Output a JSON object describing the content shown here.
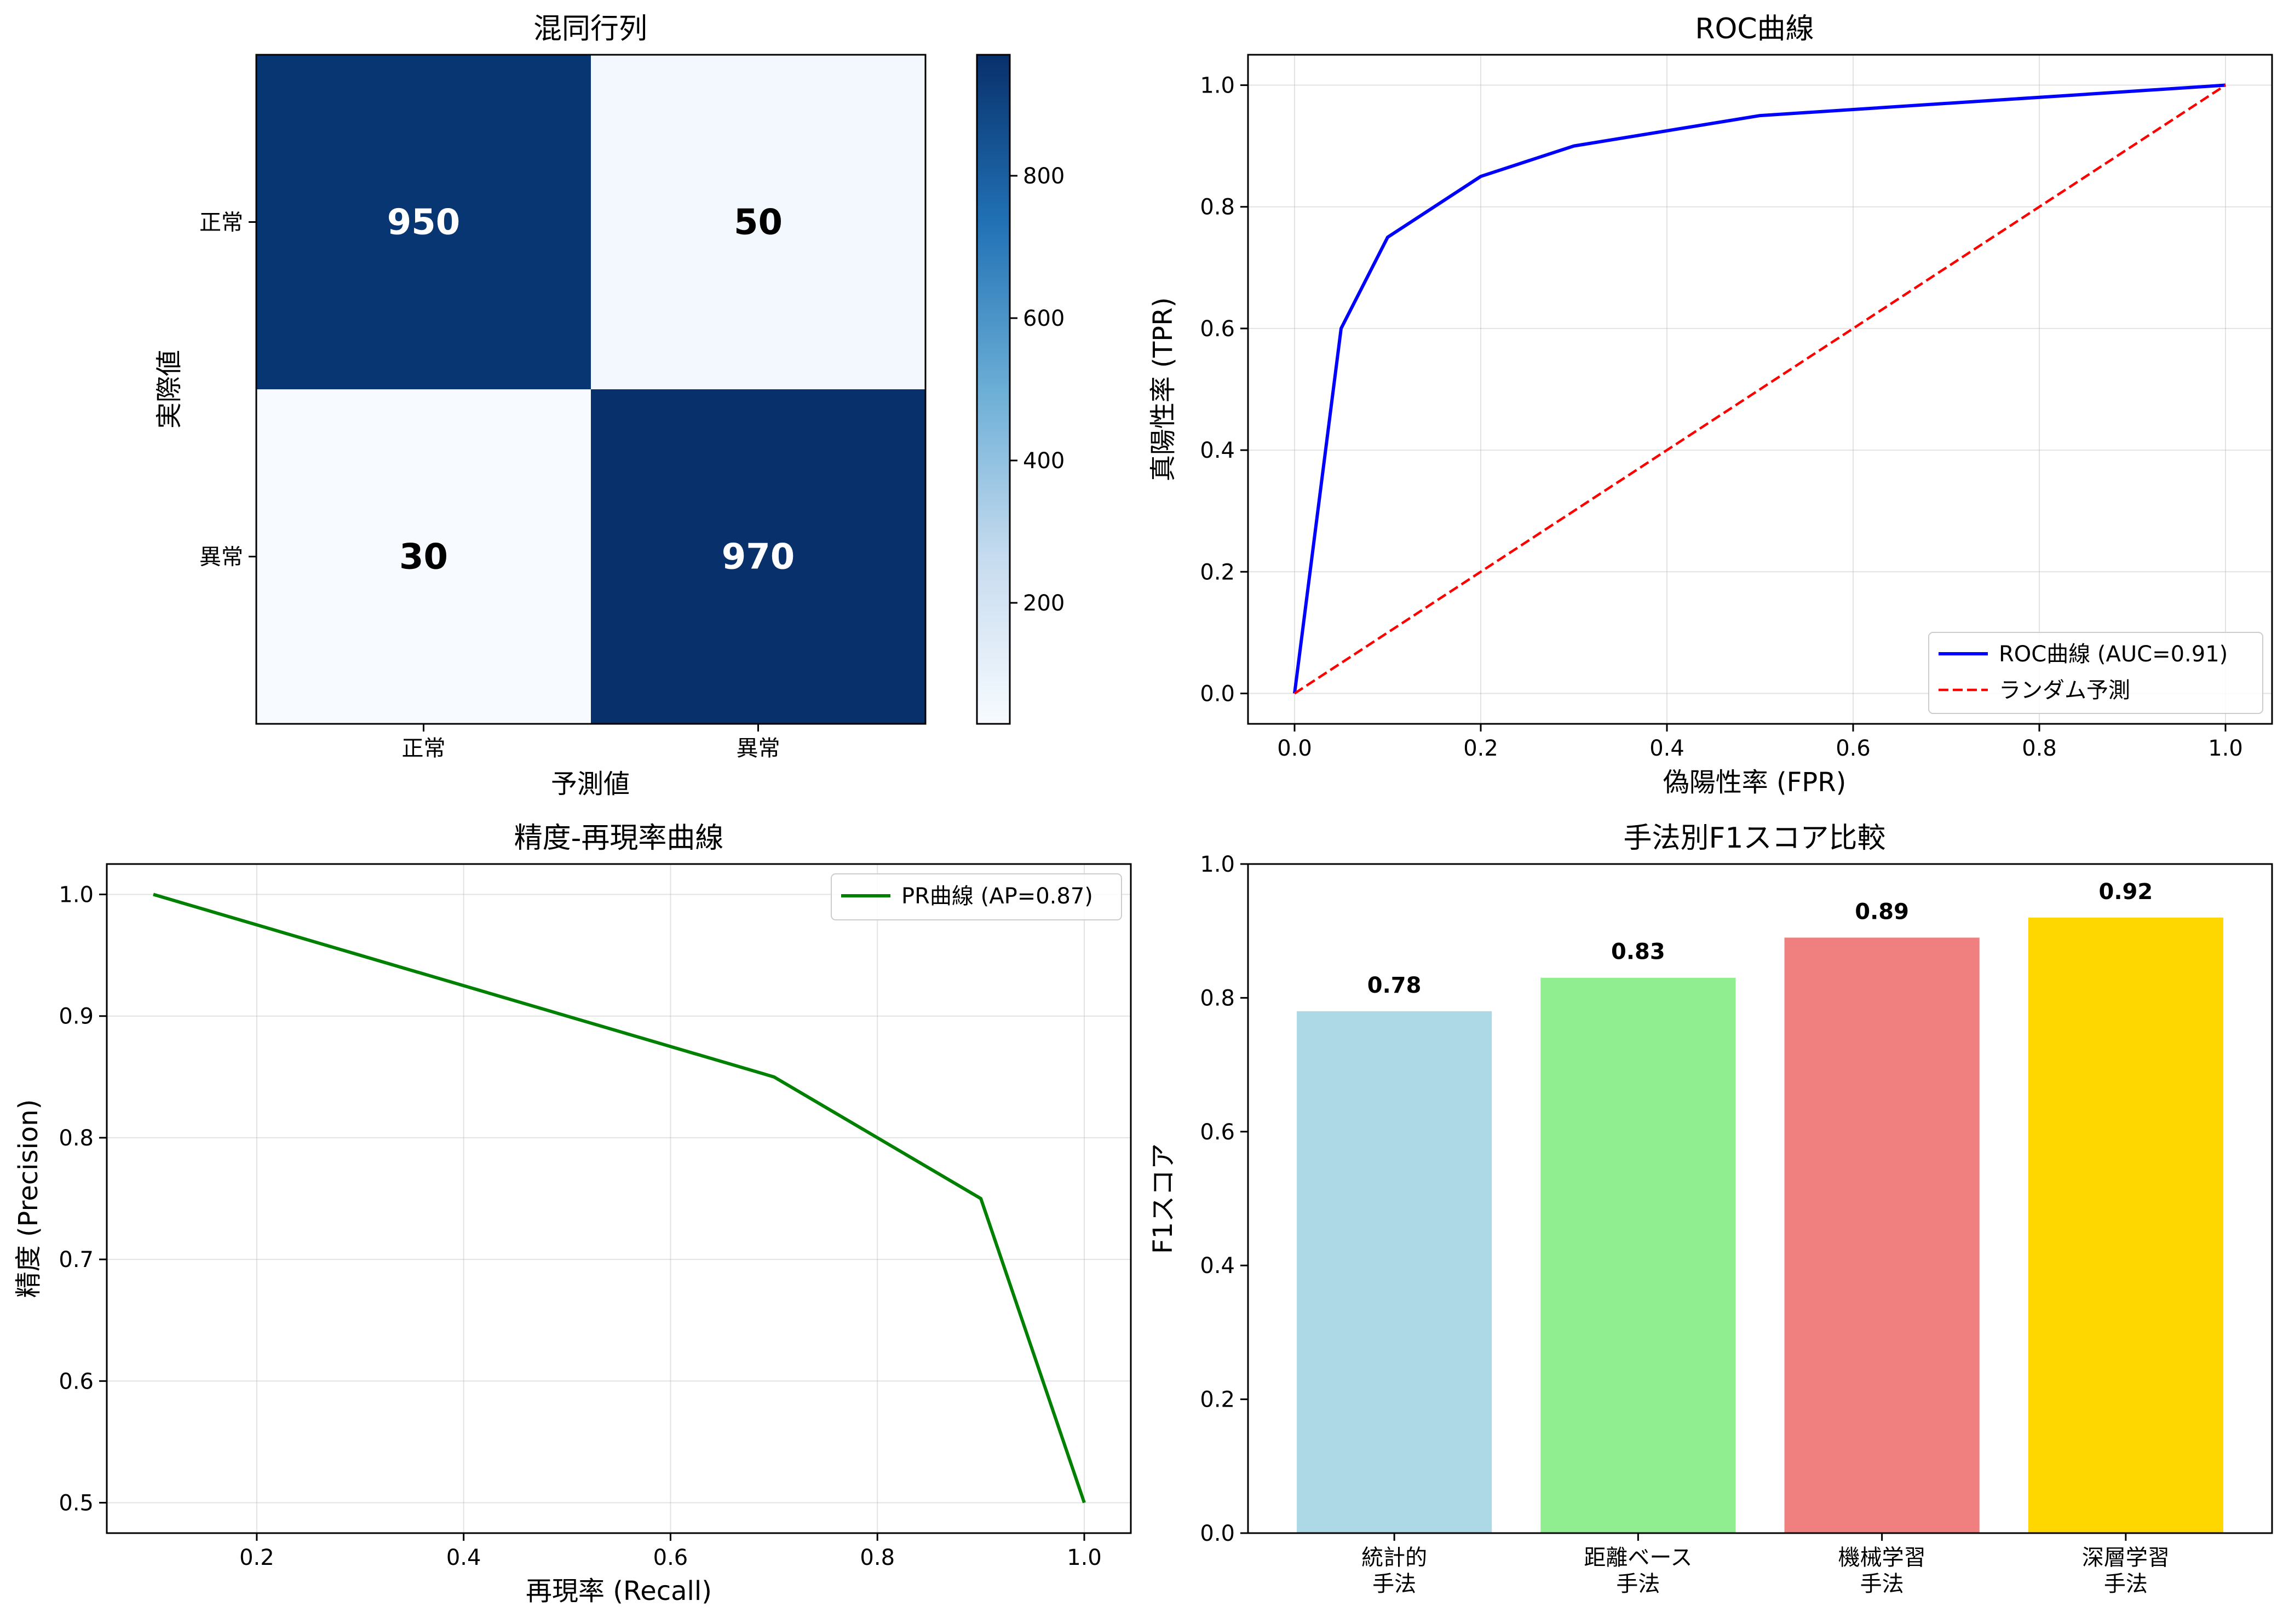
{
  "chart_data": [
    {
      "type": "heatmap",
      "title": "混同行列",
      "xlabel": "予測値",
      "ylabel": "実際値",
      "x_categories": [
        "正常",
        "異常"
      ],
      "y_categories": [
        "正常",
        "異常"
      ],
      "values": [
        [
          950,
          50
        ],
        [
          30,
          970
        ]
      ],
      "colormap": "Blues",
      "colorbar_ticks": [
        200,
        400,
        600,
        800
      ],
      "colorbar_range": [
        30,
        970
      ]
    },
    {
      "type": "line",
      "title": "ROC曲線",
      "xlabel": "偽陽性率 (FPR)",
      "ylabel": "真陽性率 (TPR)",
      "xlim": [
        -0.05,
        1.05
      ],
      "ylim": [
        -0.05,
        1.05
      ],
      "xticks": [
        "0.0",
        "0.2",
        "0.4",
        "0.6",
        "0.8",
        "1.0"
      ],
      "yticks": [
        "0.0",
        "0.2",
        "0.4",
        "0.6",
        "0.8",
        "1.0"
      ],
      "grid": true,
      "legend": "lower-right",
      "series": [
        {
          "name": "ROC曲線 (AUC=0.91)",
          "color": "#0000ff",
          "style": "solid",
          "x": [
            0,
            0.05,
            0.1,
            0.2,
            0.3,
            0.5,
            1.0
          ],
          "y": [
            0,
            0.6,
            0.75,
            0.85,
            0.9,
            0.95,
            1.0
          ]
        },
        {
          "name": "ランダム予測",
          "color": "#ff0000",
          "style": "dashed",
          "x": [
            0,
            1
          ],
          "y": [
            0,
            1
          ]
        }
      ]
    },
    {
      "type": "line",
      "title": "精度-再現率曲線",
      "xlabel": "再現率 (Recall)",
      "ylabel": "精度 (Precision)",
      "xlim": [
        0.055,
        1.045
      ],
      "ylim": [
        0.475,
        1.025
      ],
      "xticks": [
        "0.2",
        "0.4",
        "0.6",
        "0.8",
        "1.0"
      ],
      "yticks": [
        "0.5",
        "0.6",
        "0.7",
        "0.8",
        "0.9",
        "1.0"
      ],
      "grid": true,
      "legend": "top-right",
      "series": [
        {
          "name": "PR曲線 (AP=0.87)",
          "color": "#008000",
          "style": "solid",
          "x": [
            0.1,
            0.7,
            0.9,
            1.0
          ],
          "y": [
            1.0,
            0.85,
            0.75,
            0.5
          ]
        }
      ]
    },
    {
      "type": "bar",
      "title": "手法別F1スコア比較",
      "xlabel": "",
      "ylabel": "F1スコア",
      "ylim": [
        0,
        1.0
      ],
      "yticks": [
        "0.0",
        "0.2",
        "0.4",
        "0.6",
        "0.8",
        "1.0"
      ],
      "categories": [
        [
          "統計的",
          "手法"
        ],
        [
          "距離ベース",
          "手法"
        ],
        [
          "機械学習",
          "手法"
        ],
        [
          "深層学習",
          "手法"
        ]
      ],
      "values": [
        0.78,
        0.83,
        0.89,
        0.92
      ],
      "value_labels": [
        "0.78",
        "0.83",
        "0.89",
        "0.92"
      ],
      "colors": [
        "#add8e6",
        "#90ee90",
        "#f08080",
        "#ffd700"
      ]
    }
  ]
}
